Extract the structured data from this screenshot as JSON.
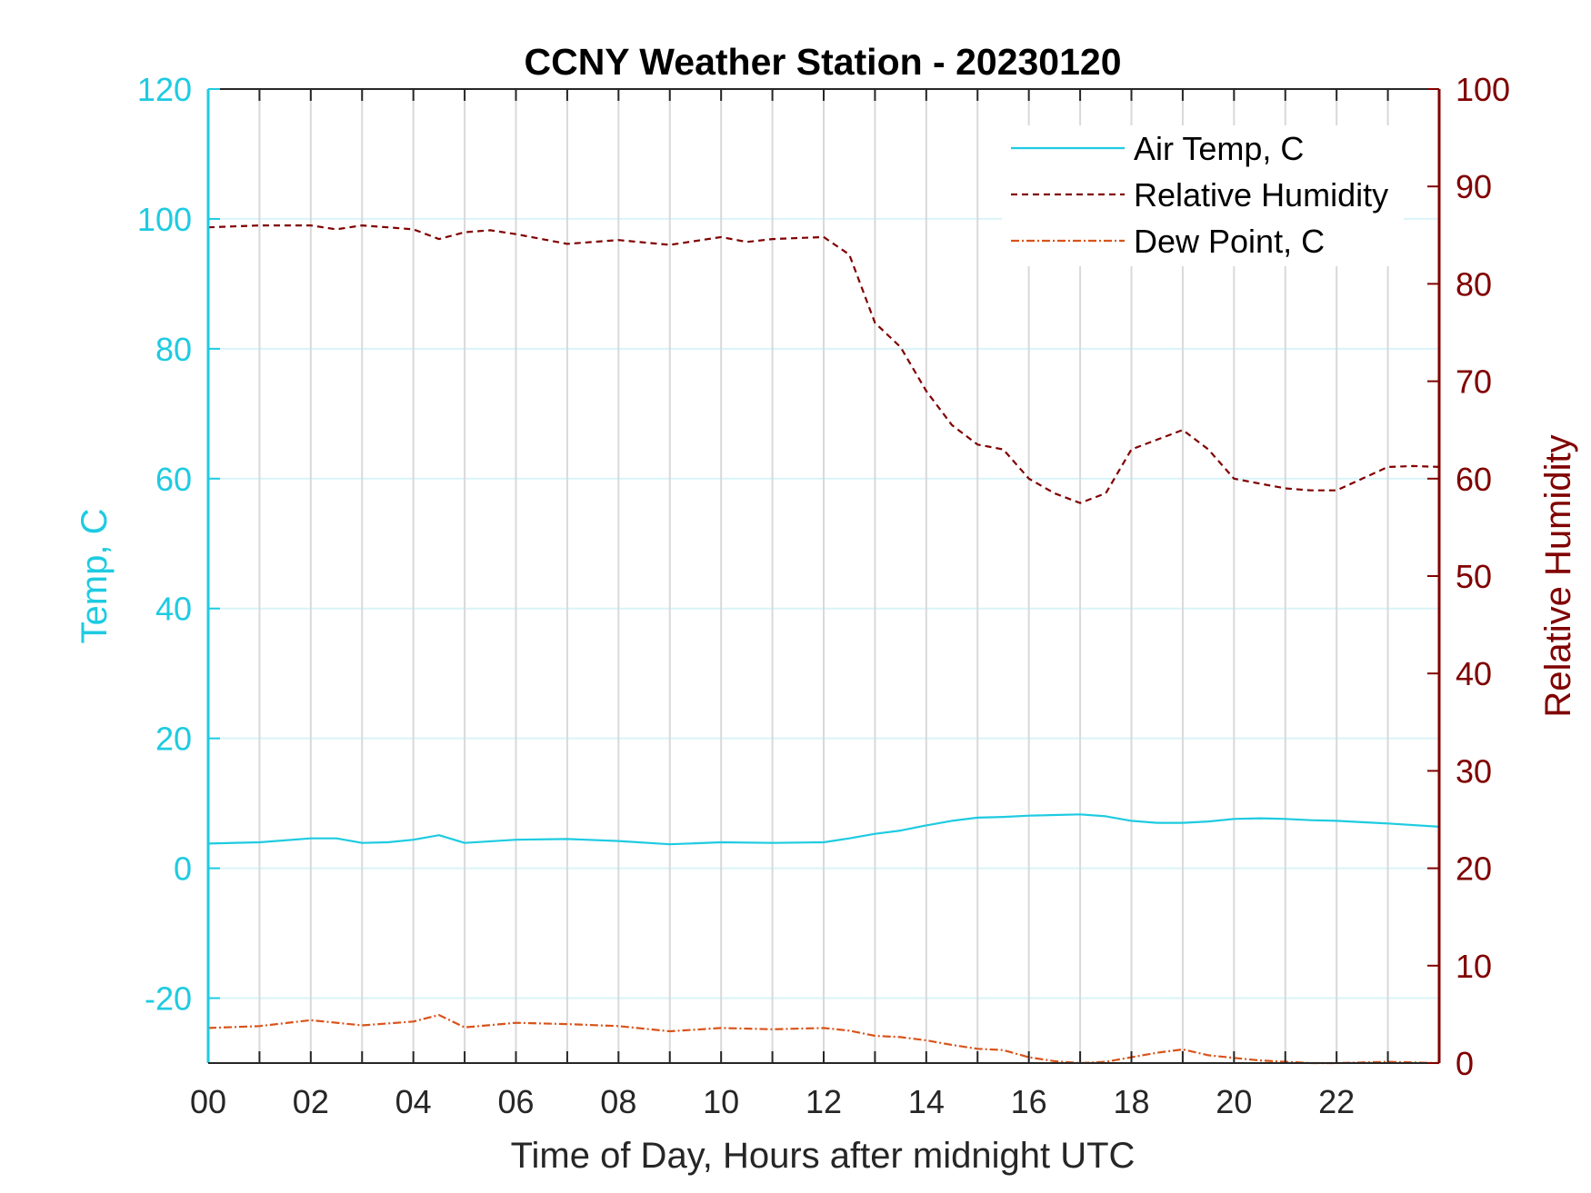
{
  "chart_data": {
    "type": "line",
    "title": "CCNY Weather Station - 20230120",
    "xlabel": "Time of Day, Hours after midnight UTC",
    "ylabel_left": "Temp, C",
    "ylabel_right": "Relative Humidity",
    "xlim": [
      0,
      24
    ],
    "ylim_left": [
      -30,
      120
    ],
    "ylim_right": [
      0,
      100
    ],
    "x_ticks": [
      0,
      2,
      4,
      6,
      8,
      10,
      12,
      14,
      16,
      18,
      20,
      22
    ],
    "x_tick_labels": [
      "00",
      "02",
      "04",
      "06",
      "08",
      "10",
      "12",
      "14",
      "16",
      "18",
      "20",
      "22"
    ],
    "y_left_ticks": [
      120,
      100,
      80,
      60,
      40,
      20,
      0,
      -20
    ],
    "y_left_tick_labels": [
      "120",
      "100",
      "80",
      "60",
      "40",
      "20",
      "0",
      "-20"
    ],
    "y_right_ticks": [
      100,
      90,
      80,
      70,
      60,
      50,
      40,
      30,
      20,
      10,
      0
    ],
    "y_right_tick_labels": [
      "100",
      "90",
      "80",
      "70",
      "60",
      "50",
      "40",
      "30",
      "20",
      "10",
      "0"
    ],
    "grid": true,
    "legend_position": "top-right",
    "colors": {
      "left_axis": "#1ecbe1",
      "right_axis": "#800000",
      "air_temp": "#1ecbe1",
      "humidity": "#800000",
      "dew_point": "#d95319",
      "grid_vertical": "#d9d9d9",
      "grid_horizontal": "#d9f4f8"
    },
    "series": [
      {
        "name": "Air Temp, C",
        "axis": "left",
        "style": "solid",
        "x": [
          0,
          1,
          2,
          2.5,
          3,
          3.5,
          4,
          4.5,
          5,
          6,
          7,
          8,
          9,
          10,
          11,
          12,
          12.5,
          13,
          13.5,
          14,
          14.5,
          15,
          15.5,
          16,
          16.5,
          17,
          17.5,
          18,
          18.5,
          19,
          19.5,
          20,
          20.5,
          21,
          21.5,
          22,
          22.5,
          23,
          24
        ],
        "y": [
          3.8,
          4.0,
          4.6,
          4.6,
          3.9,
          4.0,
          4.4,
          5.1,
          3.9,
          4.4,
          4.5,
          4.2,
          3.7,
          4.0,
          3.9,
          4.0,
          4.6,
          5.3,
          5.8,
          6.6,
          7.3,
          7.8,
          7.9,
          8.1,
          8.2,
          8.3,
          8.0,
          7.3,
          7.0,
          7.0,
          7.2,
          7.6,
          7.7,
          7.6,
          7.4,
          7.3,
          7.1,
          6.9,
          6.4
        ]
      },
      {
        "name": "Relative Humidity",
        "axis": "right",
        "style": "dashed",
        "x": [
          0,
          1,
          2,
          2.5,
          3,
          3.5,
          4,
          4.5,
          5,
          5.5,
          6,
          7,
          8,
          9,
          10,
          10.5,
          11,
          12,
          12.5,
          13,
          13.5,
          14,
          14.5,
          15,
          15.5,
          16,
          16.5,
          17,
          17.5,
          18,
          18.5,
          19,
          19.5,
          20,
          20.5,
          21,
          21.5,
          22,
          22.5,
          23,
          23.5,
          24
        ],
        "y": [
          85.8,
          86.0,
          86.0,
          85.6,
          86.0,
          85.8,
          85.6,
          84.6,
          85.3,
          85.5,
          85.1,
          84.1,
          84.5,
          84.0,
          84.8,
          84.3,
          84.6,
          84.8,
          83.0,
          76.0,
          73.5,
          69.0,
          65.5,
          63.5,
          63.0,
          60.0,
          58.5,
          57.5,
          58.5,
          63.0,
          64.0,
          65.0,
          63.0,
          60.0,
          59.5,
          59.0,
          58.8,
          58.8,
          60.0,
          61.2,
          61.3,
          61.2
        ]
      },
      {
        "name": "Dew Point, C",
        "axis": "left",
        "style": "dash-dot",
        "x": [
          0,
          1,
          2,
          3,
          4,
          4.5,
          5,
          6,
          7,
          8,
          9,
          10,
          11,
          12,
          12.5,
          13,
          13.5,
          14,
          14.5,
          15,
          15.5,
          16,
          16.5,
          17,
          17.5,
          18,
          18.5,
          19,
          19.5,
          20,
          20.5,
          21,
          21.5,
          22,
          22.5,
          23,
          24
        ],
        "y": [
          -24.6,
          -24.3,
          -23.4,
          -24.2,
          -23.6,
          -22.6,
          -24.5,
          -23.8,
          -24.0,
          -24.3,
          -25.1,
          -24.6,
          -24.8,
          -24.6,
          -25.0,
          -25.8,
          -26.0,
          -26.5,
          -27.2,
          -27.8,
          -28.0,
          -29.1,
          -29.7,
          -30.0,
          -29.8,
          -29.1,
          -28.4,
          -27.9,
          -28.8,
          -29.2,
          -29.6,
          -29.8,
          -30.0,
          -30.0,
          -29.9,
          -29.8,
          -30.0
        ]
      }
    ]
  }
}
